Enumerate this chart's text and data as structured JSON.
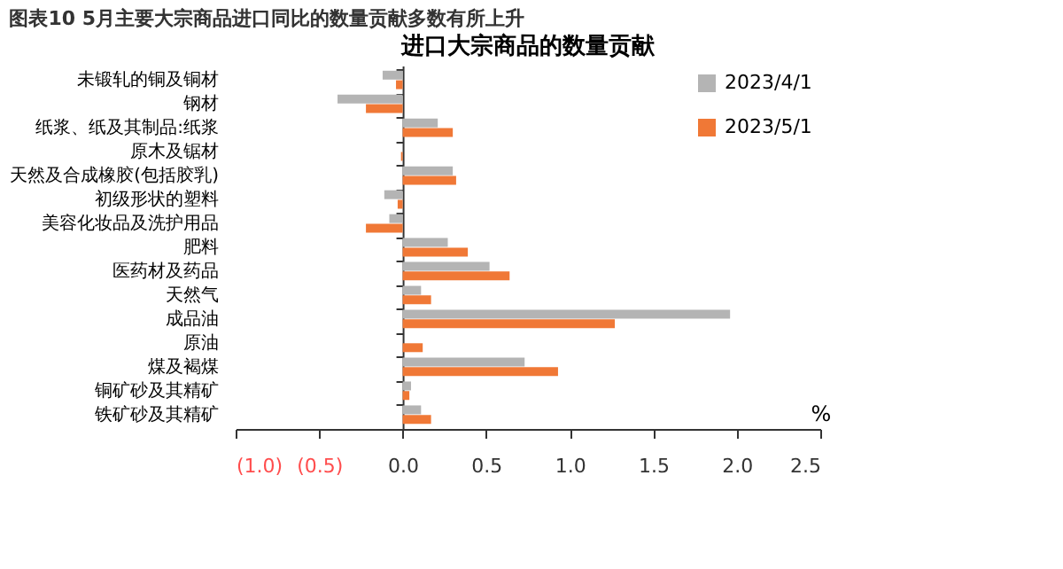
{
  "chart_data": {
    "type": "bar",
    "orientation": "horizontal",
    "title": "进口大宗商品的数量贡献",
    "annotations": [
      "图表10    5月主要大宗商品进口同比的数量贡献多数有所上升"
    ],
    "xlabel": "%",
    "categories": [
      "未锻轧的铜及铜材",
      "钢材",
      "纸浆、纸及其制品:纸浆",
      "原木及锯材",
      "天然及合成橡胶(包括胶乳)",
      "初级形状的塑料",
      "美容化妆品及洗护用品",
      "肥料",
      "医药材及药品",
      "天然气",
      "成品油",
      "原油",
      "煤及褐煤",
      "铜矿砂及其精矿",
      "铁矿砂及其精矿"
    ],
    "series": [
      {
        "name": "2023/4/1",
        "color": "#b4b4b4",
        "values": [
          -0.12,
          -0.39,
          0.21,
          0.0,
          0.3,
          -0.11,
          -0.08,
          0.27,
          0.52,
          0.11,
          1.96,
          null,
          0.73,
          0.05,
          0.11
        ]
      },
      {
        "name": "2023/5/1",
        "color": "#f07836",
        "values": [
          -0.04,
          -0.22,
          0.3,
          -0.01,
          0.32,
          -0.03,
          -0.22,
          0.39,
          0.64,
          0.17,
          1.27,
          0.12,
          0.93,
          0.04,
          0.17
        ]
      }
    ],
    "xlim": [
      -1.0,
      2.5
    ],
    "xticks": [
      {
        "value": -1.0,
        "label": "(1.0)"
      },
      {
        "value": -0.5,
        "label": "(0.5)"
      },
      {
        "value": 0.0,
        "label": "0.0"
      },
      {
        "value": 0.5,
        "label": "0.5"
      },
      {
        "value": 1.0,
        "label": "1.0"
      },
      {
        "value": 1.5,
        "label": "1.5"
      },
      {
        "value": 2.0,
        "label": "2.0"
      },
      {
        "value": 2.5,
        "label": "2.5"
      }
    ],
    "legend": "top right"
  }
}
